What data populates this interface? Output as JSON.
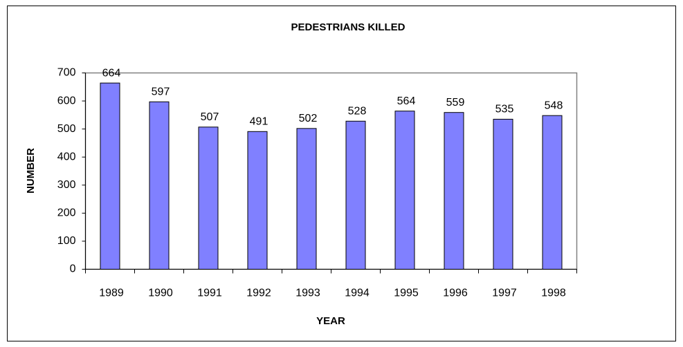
{
  "chart_data": {
    "type": "bar",
    "title": "PEDESTRIANS KILLED",
    "x_label": "YEAR",
    "y_label": "NUMBER",
    "categories": [
      "1989",
      "1990",
      "1991",
      "1992",
      "1993",
      "1994",
      "1995",
      "1996",
      "1997",
      "1998"
    ],
    "values": [
      664,
      597,
      507,
      491,
      502,
      528,
      564,
      559,
      535,
      548
    ],
    "color": "#8080ff",
    "ylim": [
      0,
      700
    ],
    "yticks": [
      0,
      100,
      200,
      300,
      400,
      500,
      600,
      700
    ],
    "grid": false
  }
}
